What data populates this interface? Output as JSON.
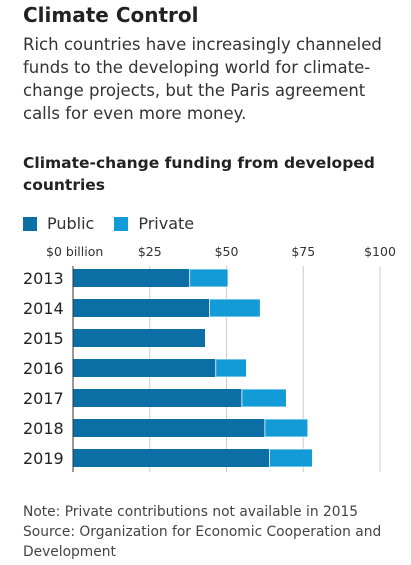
{
  "headline": "Climate Control",
  "dek": "Rich countries have increasingly channeled funds to the developing world for climate-change projects, but the Paris agreement calls for even more money.",
  "note": "Note: Private contributions not available in 2015",
  "source": "Source: Organization for Economic Cooperation and Development",
  "colors": {
    "public": "#0b6fa6",
    "private": "#129bd6",
    "grid": "#cccccc",
    "text": "#222222"
  },
  "chart_data": {
    "type": "bar",
    "orientation": "horizontal",
    "stacked": true,
    "title": "Climate-change funding from developed countries",
    "categories": [
      "2013",
      "2014",
      "2015",
      "2016",
      "2017",
      "2018",
      "2019"
    ],
    "series": [
      {
        "name": "Public",
        "values": [
          38.0,
          44.5,
          43.0,
          46.5,
          55.0,
          62.5,
          64.0
        ]
      },
      {
        "name": "Private",
        "values": [
          12.5,
          16.5,
          0,
          10.0,
          14.5,
          14.0,
          14.0
        ]
      }
    ],
    "xlim": [
      0,
      100
    ],
    "x_ticks": [
      {
        "value": 0,
        "label": "$0 billion"
      },
      {
        "value": 25,
        "label": "$25"
      },
      {
        "value": 50,
        "label": "$50"
      },
      {
        "value": 75,
        "label": "$75"
      },
      {
        "value": 100,
        "label": "$100"
      }
    ],
    "grid": true,
    "legend_position": "top-left"
  }
}
